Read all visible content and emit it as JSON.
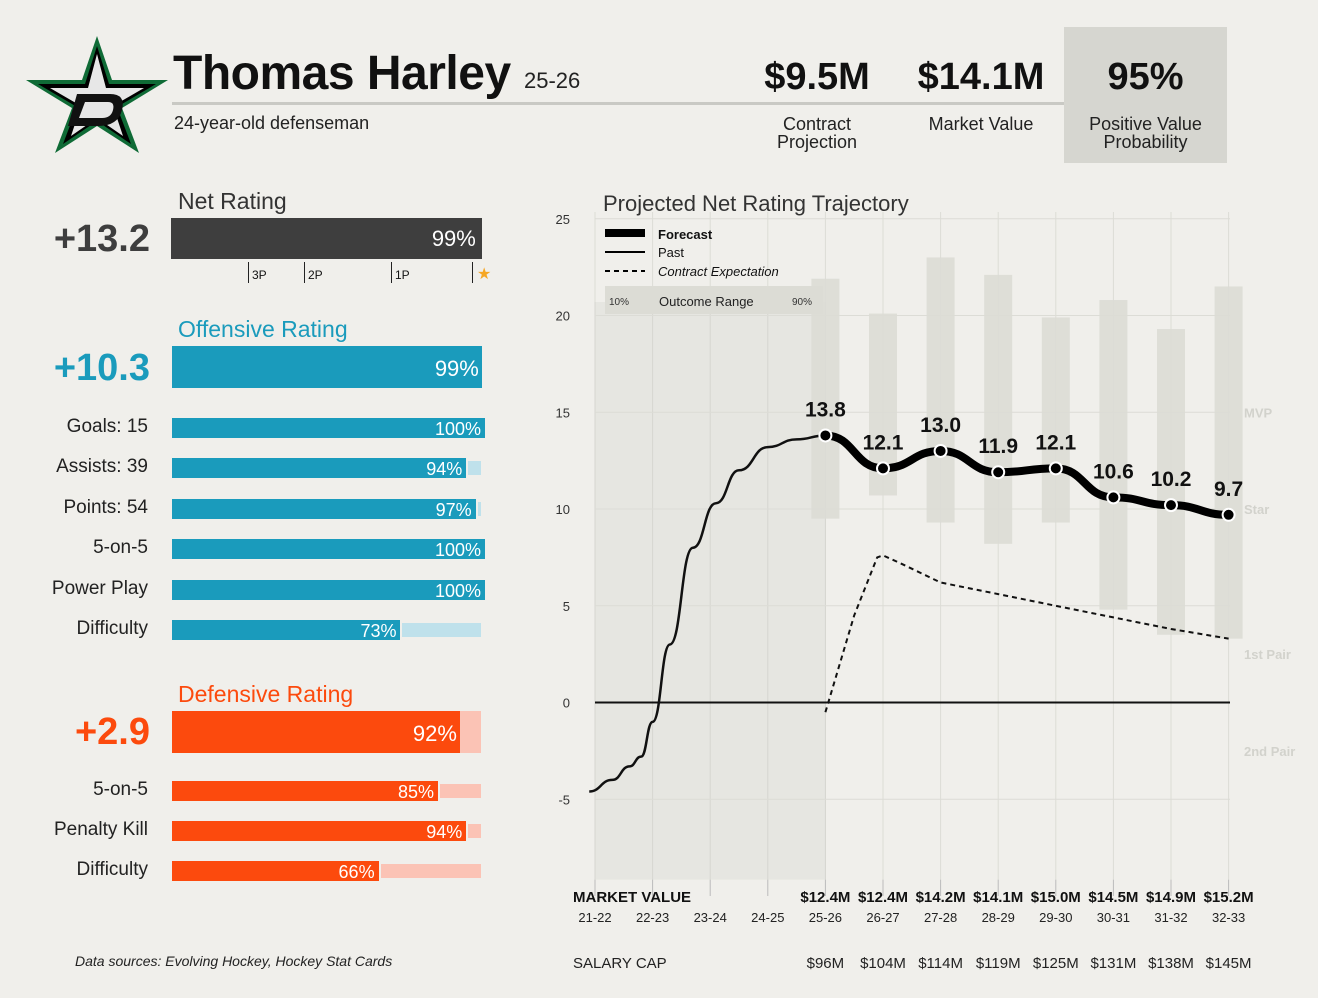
{
  "header": {
    "player_name": "Thomas Harley",
    "season": "25-26",
    "description": "24-year-old defenseman",
    "contract_projection": {
      "value": "$9.5M",
      "label": "Contract\nProjection"
    },
    "market_value": {
      "value": "$14.1M",
      "label": "Market Value"
    },
    "positive_value_probability": {
      "value": "95%",
      "label": "Positive Value\nProbability"
    }
  },
  "net_rating": {
    "title": "Net Rating",
    "value": "+13.2",
    "percentile_label": "99%",
    "percentile": 0.99,
    "tiers": [
      "3P",
      "2P",
      "1P"
    ],
    "star_icon": "star-icon",
    "color": "#3e3e3e"
  },
  "offensive": {
    "title": "Offensive Rating",
    "value": "+10.3",
    "percentile_label": "99%",
    "percentile": 0.99,
    "color": "#1a9bbc",
    "light_color": "#bfe1eb",
    "rows": [
      {
        "label": "Goals: 15",
        "pct_label": "100%",
        "pct": 1.0
      },
      {
        "label": "Assists: 39",
        "pct_label": "94%",
        "pct": 0.94
      },
      {
        "label": "Points: 54",
        "pct_label": "97%",
        "pct": 0.97
      },
      {
        "label": "5-on-5",
        "pct_label": "100%",
        "pct": 1.0
      },
      {
        "label": "Power Play",
        "pct_label": "100%",
        "pct": 1.0
      },
      {
        "label": "Difficulty",
        "pct_label": "73%",
        "pct": 0.73
      }
    ]
  },
  "defensive": {
    "title": "Defensive Rating",
    "value": "+2.9",
    "percentile_label": "92%",
    "percentile": 0.92,
    "color": "#fc4a0d",
    "light_color": "#fbc3b5",
    "rows": [
      {
        "label": "5-on-5",
        "pct_label": "85%",
        "pct": 0.85
      },
      {
        "label": "Penalty Kill",
        "pct_label": "94%",
        "pct": 0.94
      },
      {
        "label": "Difficulty",
        "pct_label": "66%",
        "pct": 0.66
      }
    ]
  },
  "sources": "Data sources: Evolving Hockey, Hockey Stat Cards",
  "chart_data": {
    "type": "line",
    "title": "Projected Net Rating Trajectory",
    "ylim": [
      -9,
      25
    ],
    "yticks": [
      -5,
      0,
      5,
      10,
      15,
      20,
      25
    ],
    "categories": [
      "21-22",
      "22-23",
      "23-24",
      "24-25",
      "25-26",
      "26-27",
      "27-28",
      "28-29",
      "29-30",
      "30-31",
      "31-32",
      "32-33"
    ],
    "legend": {
      "forecast": "Forecast",
      "past": "Past",
      "contract": "Contract Expectation",
      "range": "Outcome Range",
      "range_low": "10%",
      "range_high": "90%"
    },
    "tier_labels": [
      {
        "label": "MVP",
        "y": 15
      },
      {
        "label": "Star",
        "y": 10
      },
      {
        "label": "1st Pair",
        "y": 2.5
      },
      {
        "label": "2nd Pair",
        "y": -2.5
      }
    ],
    "series": [
      {
        "name": "Past",
        "x": [
          20.9,
          21.3,
          21.6,
          21.8,
          22.0,
          22.3,
          22.7,
          23.1,
          23.5,
          24.0,
          24.5,
          25.0
        ],
        "y": [
          -4.6,
          -4.0,
          -3.3,
          -2.8,
          -1.0,
          3.0,
          8.0,
          10.3,
          12.0,
          13.2,
          13.6,
          13.8
        ]
      },
      {
        "name": "Forecast",
        "x": [
          25.0,
          26.0,
          27.0,
          28.0,
          29.0,
          30.0,
          31.0,
          32.0
        ],
        "y": [
          13.8,
          12.1,
          13.0,
          11.9,
          12.1,
          10.6,
          10.2,
          9.7
        ],
        "labels": [
          "13.8",
          "12.1",
          "13.0",
          "11.9",
          "12.1",
          "10.6",
          "10.2",
          "9.7"
        ]
      },
      {
        "name": "Contract Expectation",
        "x": [
          25.0,
          25.5,
          25.9,
          26.0,
          26.3,
          27.0,
          28.0,
          29.0,
          30.0,
          31.0,
          32.0
        ],
        "y": [
          -0.5,
          4.5,
          7.5,
          7.6,
          7.2,
          6.2,
          5.6,
          5.0,
          4.4,
          3.8,
          3.3
        ]
      }
    ],
    "outcome_range": {
      "x": [
        25.0,
        26.0,
        27.0,
        28.0,
        29.0,
        30.0,
        31.0,
        32.0
      ],
      "low": [
        9.5,
        10.7,
        9.3,
        8.2,
        9.3,
        4.8,
        3.5,
        3.3
      ],
      "high": [
        21.9,
        20.1,
        23.0,
        22.1,
        19.9,
        20.8,
        19.3,
        21.5
      ]
    },
    "market_value_label": "MARKET VALUE",
    "market_values": [
      "",
      "",
      "",
      "",
      "$12.4M",
      "$12.4M",
      "$14.2M",
      "$14.1M",
      "$15.0M",
      "$14.5M",
      "$14.9M",
      "$15.2M"
    ],
    "salary_cap_label": "SALARY CAP",
    "salary_caps": [
      "",
      "",
      "",
      "",
      "$96M",
      "$104M",
      "$114M",
      "$119M",
      "$125M",
      "$131M",
      "$138M",
      "$145M"
    ]
  }
}
